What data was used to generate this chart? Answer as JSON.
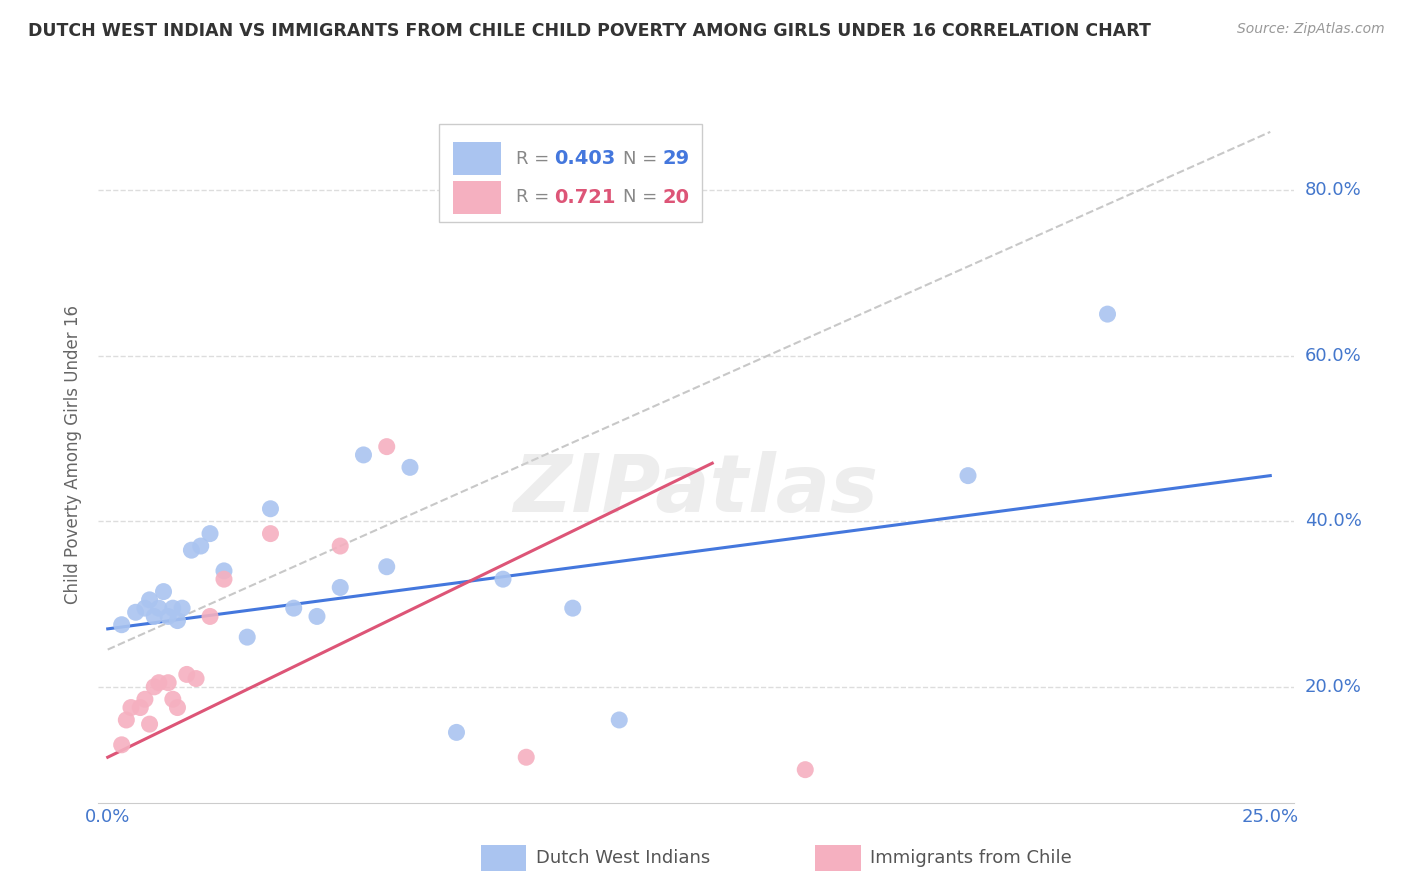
{
  "title": "DUTCH WEST INDIAN VS IMMIGRANTS FROM CHILE CHILD POVERTY AMONG GIRLS UNDER 16 CORRELATION CHART",
  "source": "Source: ZipAtlas.com",
  "ylabel": "Child Poverty Among Girls Under 16",
  "y_ticks": [
    0.2,
    0.4,
    0.6,
    0.8
  ],
  "y_tick_labels": [
    "20.0%",
    "40.0%",
    "60.0%",
    "80.0%"
  ],
  "x_ticks": [
    0.0,
    0.05,
    0.1,
    0.15,
    0.2,
    0.25
  ],
  "x_tick_labels": [
    "0.0%",
    "",
    "",
    "",
    "",
    "25.0%"
  ],
  "xlim": [
    -0.002,
    0.255
  ],
  "ylim": [
    0.06,
    0.9
  ],
  "blue_R": "0.403",
  "blue_N": "29",
  "pink_R": "0.721",
  "pink_N": "20",
  "blue_color": "#aac4f0",
  "pink_color": "#f5b0c0",
  "blue_line_color": "#4477dd",
  "pink_line_color": "#dd5577",
  "ref_line_color": "#c8c8c8",
  "legend_label_blue": "Dutch West Indians",
  "legend_label_pink": "Immigrants from Chile",
  "watermark": "ZIPatlas",
  "blue_scatter_x": [
    0.003,
    0.006,
    0.008,
    0.009,
    0.01,
    0.011,
    0.012,
    0.013,
    0.014,
    0.015,
    0.016,
    0.018,
    0.02,
    0.022,
    0.025,
    0.03,
    0.035,
    0.04,
    0.045,
    0.05,
    0.055,
    0.06,
    0.065,
    0.075,
    0.085,
    0.1,
    0.11,
    0.185,
    0.215
  ],
  "blue_scatter_y": [
    0.275,
    0.29,
    0.295,
    0.305,
    0.285,
    0.295,
    0.315,
    0.285,
    0.295,
    0.28,
    0.295,
    0.365,
    0.37,
    0.385,
    0.34,
    0.26,
    0.415,
    0.295,
    0.285,
    0.32,
    0.48,
    0.345,
    0.465,
    0.145,
    0.33,
    0.295,
    0.16,
    0.455,
    0.65
  ],
  "pink_scatter_x": [
    0.003,
    0.004,
    0.005,
    0.007,
    0.008,
    0.009,
    0.01,
    0.011,
    0.013,
    0.014,
    0.015,
    0.017,
    0.019,
    0.022,
    0.025,
    0.035,
    0.05,
    0.06,
    0.09,
    0.15
  ],
  "pink_scatter_y": [
    0.13,
    0.16,
    0.175,
    0.175,
    0.185,
    0.155,
    0.2,
    0.205,
    0.205,
    0.185,
    0.175,
    0.215,
    0.21,
    0.285,
    0.33,
    0.385,
    0.37,
    0.49,
    0.115,
    0.1
  ],
  "blue_line_x": [
    0.0,
    0.25
  ],
  "blue_line_y": [
    0.27,
    0.455
  ],
  "pink_line_x": [
    0.0,
    0.13
  ],
  "pink_line_y": [
    0.115,
    0.47
  ],
  "ref_line_x": [
    0.0,
    0.25
  ],
  "ref_line_y": [
    0.245,
    0.87
  ]
}
